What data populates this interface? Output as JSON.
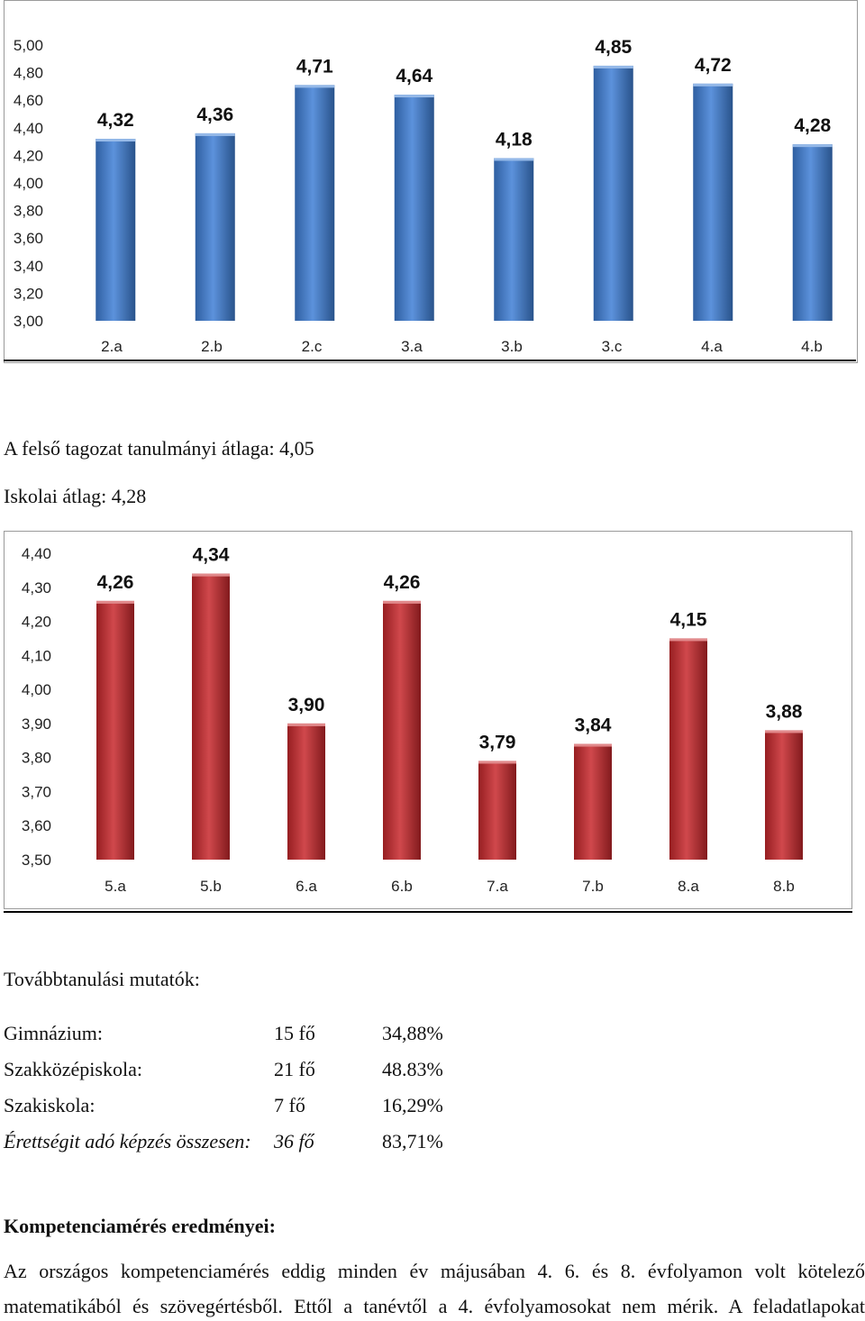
{
  "chart_data": [
    {
      "type": "bar",
      "categories": [
        "2.a",
        "2.b",
        "2.c",
        "3.a",
        "3.b",
        "3.c",
        "4.a",
        "4.b"
      ],
      "values": [
        4.32,
        4.36,
        4.71,
        4.64,
        4.18,
        4.85,
        4.72,
        4.28
      ],
      "data_labels": [
        "4,32",
        "4,36",
        "4,71",
        "4,64",
        "4,18",
        "4,85",
        "4,72",
        "4,28"
      ],
      "y_ticks": [
        "3,00",
        "3,20",
        "3,40",
        "3,60",
        "3,80",
        "4,00",
        "4,20",
        "4,40",
        "4,60",
        "4,80",
        "5,00"
      ],
      "ylim": [
        3.0,
        5.0
      ],
      "bar_color": "#3f7fd6",
      "grid": false,
      "title": "",
      "xlabel": "",
      "ylabel": ""
    },
    {
      "type": "bar",
      "categories": [
        "5.a",
        "5.b",
        "6.a",
        "6.b",
        "7.a",
        "7.b",
        "8.a",
        "8.b"
      ],
      "values": [
        4.26,
        4.34,
        3.9,
        4.26,
        3.79,
        3.84,
        4.15,
        3.88
      ],
      "data_labels": [
        "4,26",
        "4,34",
        "3,90",
        "4,26",
        "3,79",
        "3,84",
        "4,15",
        "3,88"
      ],
      "y_ticks": [
        "3,50",
        "3,60",
        "3,70",
        "3,80",
        "3,90",
        "4,00",
        "4,10",
        "4,20",
        "4,30",
        "4,40"
      ],
      "ylim": [
        3.5,
        4.4
      ],
      "bar_color": "#c8282c",
      "grid": false,
      "title": "",
      "xlabel": "",
      "ylabel": ""
    }
  ],
  "text": {
    "upper_avg": "A felső tagozat tanulmányi átlaga: 4,05",
    "school_avg": "Iskolai átlag: 4,28",
    "further_heading": "Továbbtanulási mutatók:",
    "rows": [
      {
        "name": "Gimnázium:",
        "count": "15 fő",
        "pct": "34,88%"
      },
      {
        "name": "Szakközépiskola:",
        "count": "21 fő",
        "pct": "48.83%"
      },
      {
        "name": "Szakiskola:",
        "count": "7 fő",
        "pct": "16,29%"
      },
      {
        "name": "Érettségit adó képzés összesen:",
        "count": "36 fő",
        "pct": "83,71%"
      }
    ],
    "competence_heading": "Kompetenciamérés eredményei:",
    "para_line1": "Az országos kompetenciamérés eddig minden év májusában 4. 6. és 8. évfolyamon volt kötelező",
    "para_line2": "matematikából és szövegértésből. Ettől a tanévtől a 4. évfolyamosokat nem mérik. A feladatlapokat"
  }
}
